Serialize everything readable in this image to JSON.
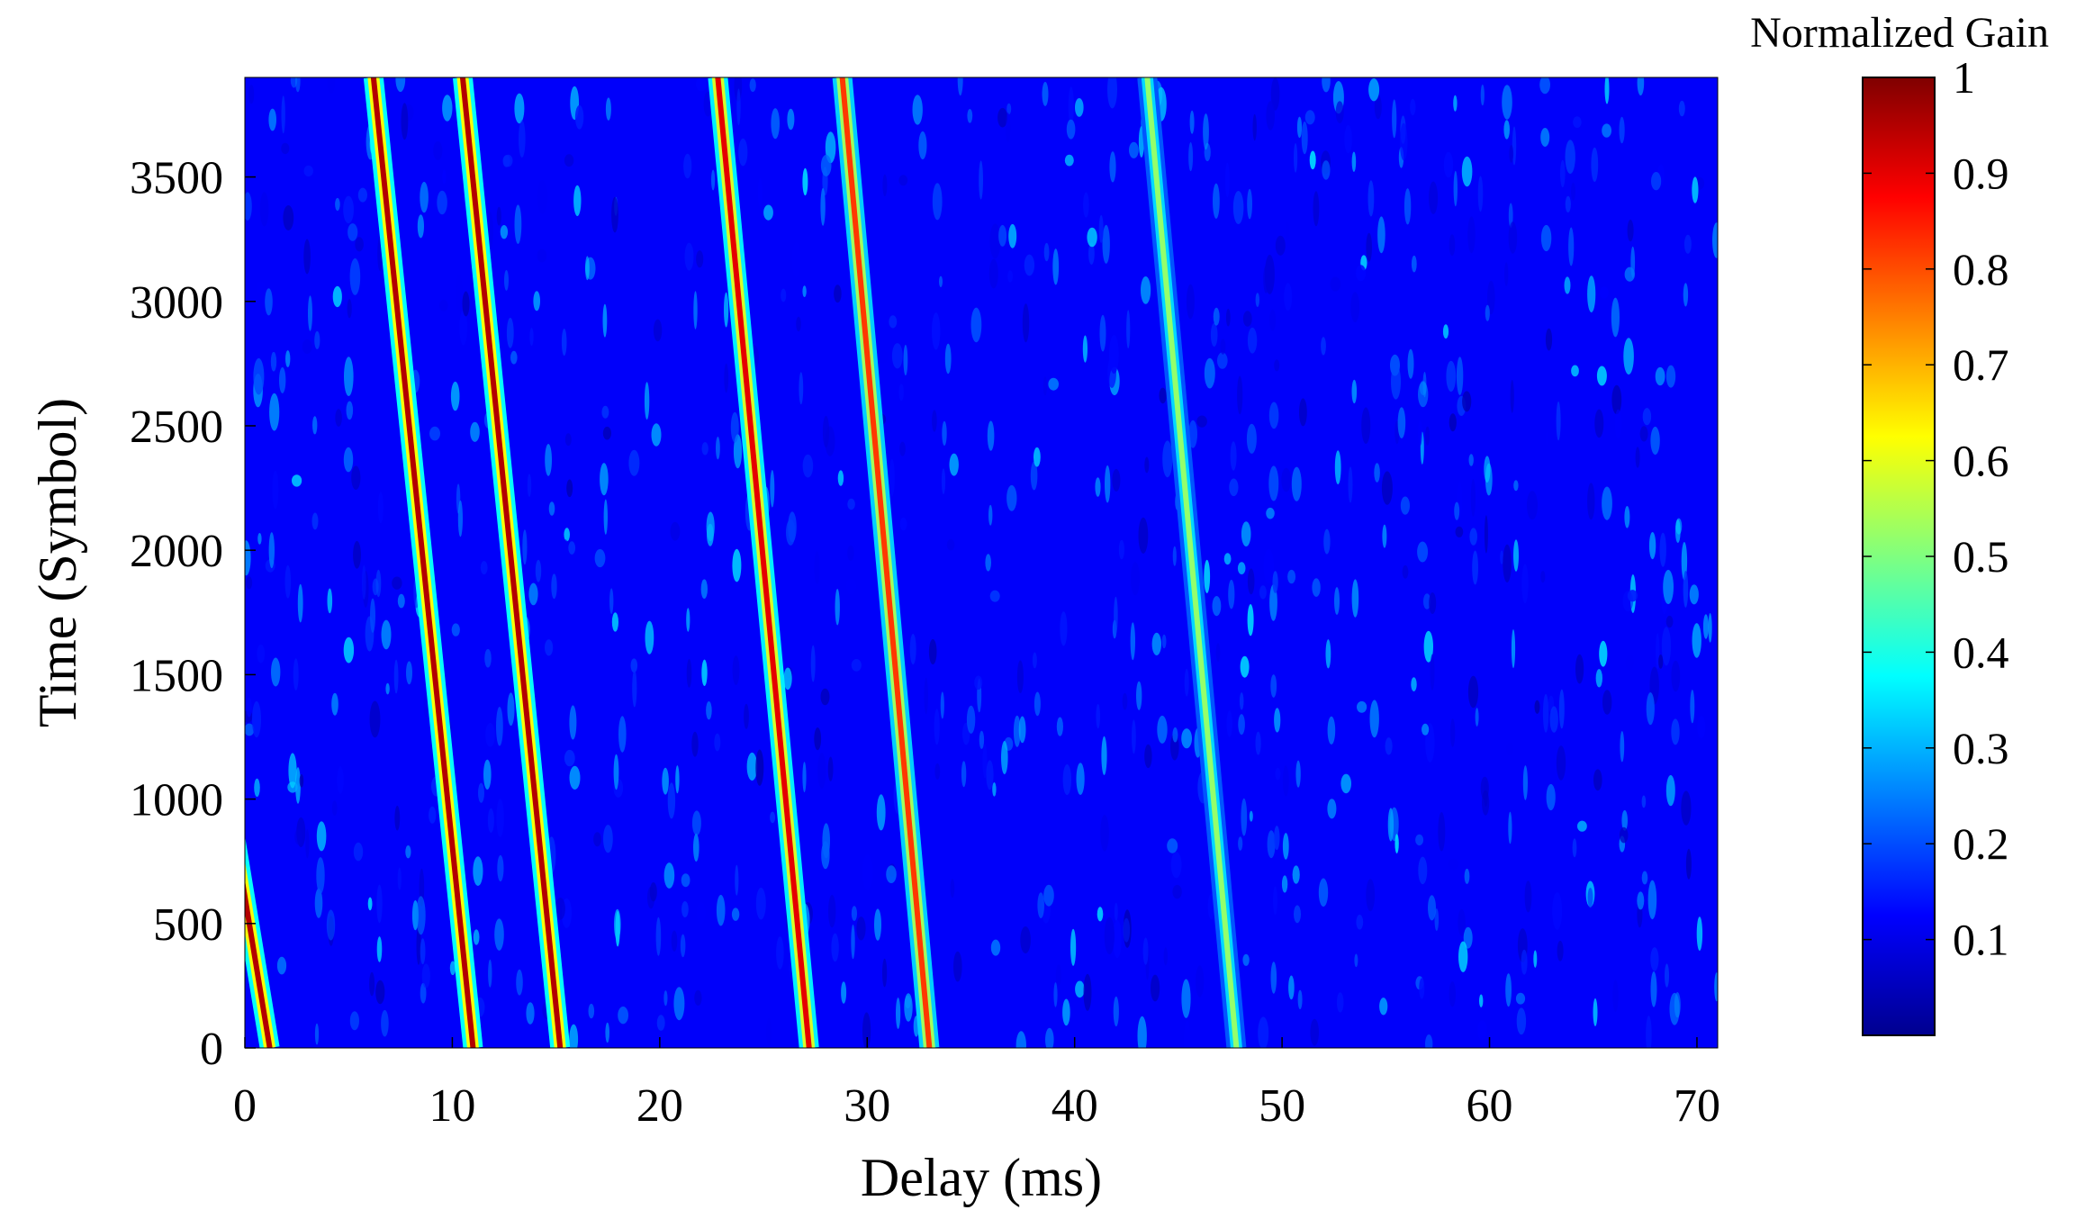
{
  "chart_data": {
    "type": "heatmap",
    "title": "",
    "xlabel": "Delay (ms)",
    "ylabel": "Time (Symbol)",
    "xlim": [
      0,
      71
    ],
    "ylim": [
      0,
      3900
    ],
    "xticks": [
      0,
      10,
      20,
      30,
      40,
      50,
      60,
      70
    ],
    "yticks": [
      0,
      500,
      1000,
      1500,
      2000,
      2500,
      3000,
      3500
    ],
    "colorbar": {
      "label": "Normalized Gain",
      "range": [
        0,
        1
      ],
      "ticks": [
        0.1,
        0.2,
        0.3,
        0.4,
        0.5,
        0.6,
        0.7,
        0.8,
        0.9,
        1
      ],
      "tick_labels": [
        "0.1",
        "0.2",
        "0.3",
        "0.4",
        "0.5",
        "0.6",
        "0.7",
        "0.8",
        "0.9",
        "1"
      ],
      "colormap": "jet"
    },
    "background_gain": 0.12,
    "paths": [
      {
        "delay_at_0": 1.2,
        "delay_at_3900": -6.5,
        "peak_gain": 0.95
      },
      {
        "delay_at_0": 11.0,
        "delay_at_3900": 6.2,
        "peak_gain": 0.95
      },
      {
        "delay_at_0": 15.2,
        "delay_at_3900": 10.5,
        "peak_gain": 0.95
      },
      {
        "delay_at_0": 27.2,
        "delay_at_3900": 22.8,
        "peak_gain": 0.9
      },
      {
        "delay_at_0": 33.0,
        "delay_at_3900": 28.8,
        "peak_gain": 0.82
      },
      {
        "delay_at_0": 47.8,
        "delay_at_3900": 43.5,
        "peak_gain": 0.52
      }
    ]
  }
}
